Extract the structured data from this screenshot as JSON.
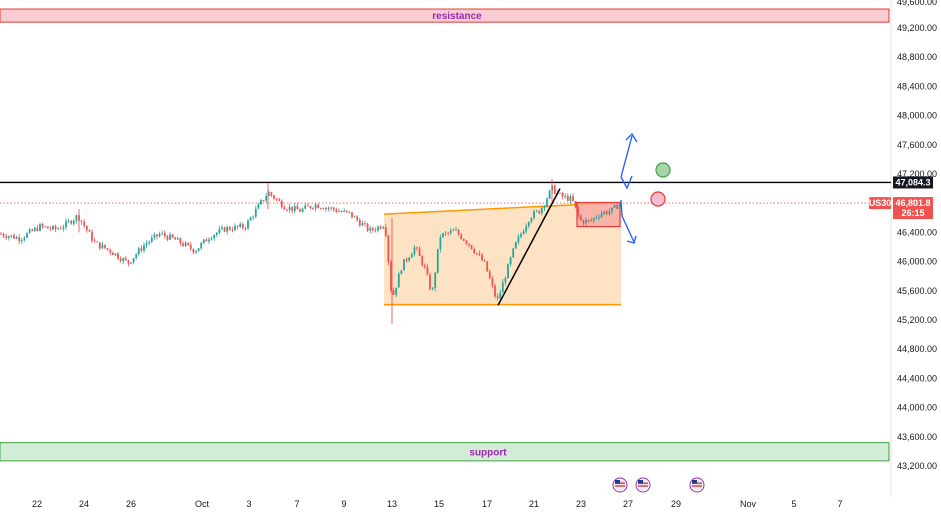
{
  "chart_data": {
    "type": "candlestick",
    "symbol": "US30",
    "price_scale": {
      "ticks": [
        49200,
        48800,
        48400,
        48000,
        47600,
        47200,
        46400,
        46000,
        45600,
        45200,
        44800,
        44400,
        44000,
        43600,
        43200
      ],
      "partial_top_tick": 49600
    },
    "time_axis": {
      "labels": [
        "22",
        "24",
        "26",
        "Oct",
        "3",
        "7",
        "9",
        "13",
        "15",
        "17",
        "21",
        "23",
        "27",
        "29",
        "Nov",
        "5",
        "7"
      ]
    },
    "zones": {
      "resistance": {
        "label": "resistance",
        "from": 49280,
        "to": 49460
      },
      "support": {
        "label": "support",
        "from": 43270,
        "to": 43520
      }
    },
    "levels": {
      "horizontal": {
        "value": 47084.3,
        "label": "47,084.3"
      },
      "last_price": {
        "value": 46801.8,
        "label": "46,801.8",
        "countdown": "26:15"
      }
    },
    "pattern": {
      "upper_line_start": 46650,
      "upper_line_end": 46810,
      "lower_line": 45410,
      "impulse_line_from": 45400,
      "impulse_line_to": 47000,
      "breakout_box_top": 46810,
      "breakout_box_bottom": 46480
    },
    "colors": {
      "up": "#26a69a",
      "down": "#ef5350",
      "resistance_fill": "#f7cdd3",
      "support_fill": "#d3ecd5",
      "pattern_fill": "#fde3c4",
      "pattern_line": "#ff9800",
      "projection": "#2962ff",
      "label_text": "#9c27b0"
    },
    "grid": false
  }
}
